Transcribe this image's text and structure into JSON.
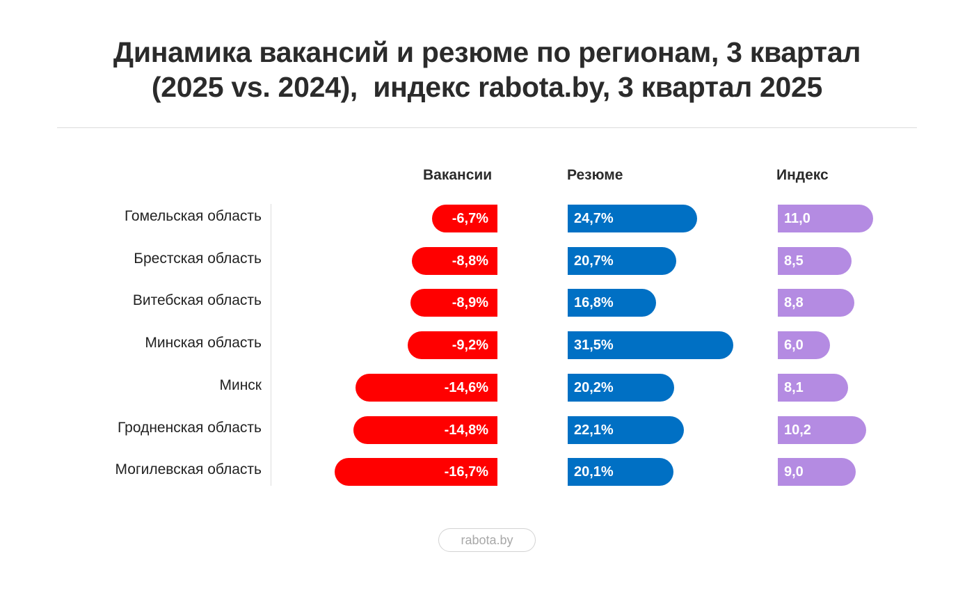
{
  "title": {
    "line1": "Динамика вакансий и резюме по регионам, 3 квартал",
    "line2": "(2025 vs. 2024),  индекс rabota.by, 3 квартал 2025"
  },
  "footer": {
    "brand": "rabota.by"
  },
  "colors": {
    "vacancies": "#ff0000",
    "resumes": "#0070c4",
    "index": "#b48be2"
  },
  "chart_data": {
    "type": "bar",
    "title": "Динамика вакансий и резюме по регионам, 3 квартал (2025 vs. 2024),  индекс rabota.by, 3 квартал 2025",
    "categories": [
      "Гомельская область",
      "Брестская область",
      "Витебская область",
      "Минская область",
      "Минск",
      "Гродненская область",
      "Могилевская область"
    ],
    "series": [
      {
        "name": "Вакансии",
        "unit": "%",
        "values": [
          -6.7,
          -8.8,
          -8.9,
          -9.2,
          -14.6,
          -14.8,
          -16.7
        ],
        "labels": [
          "-6,7%",
          "-8,8%",
          "-8,9%",
          "-9,2%",
          "-14,6%",
          "-14,8%",
          "-16,7%"
        ]
      },
      {
        "name": "Резюме",
        "unit": "%",
        "values": [
          24.7,
          20.7,
          16.8,
          31.5,
          20.2,
          22.1,
          20.1
        ],
        "labels": [
          "24,7%",
          "20,7%",
          "16,8%",
          "31,5%",
          "20,2%",
          "22,1%",
          "20,1%"
        ]
      },
      {
        "name": "Индекс",
        "unit": "",
        "values": [
          11.0,
          8.5,
          8.8,
          6.0,
          8.1,
          10.2,
          9.0
        ],
        "labels": [
          "11,0",
          "8,5",
          "8,8",
          "6,0",
          "8,1",
          "10,2",
          "9,0"
        ]
      }
    ],
    "orientation": "horizontal",
    "grid": false,
    "legend": "column headers at top"
  }
}
